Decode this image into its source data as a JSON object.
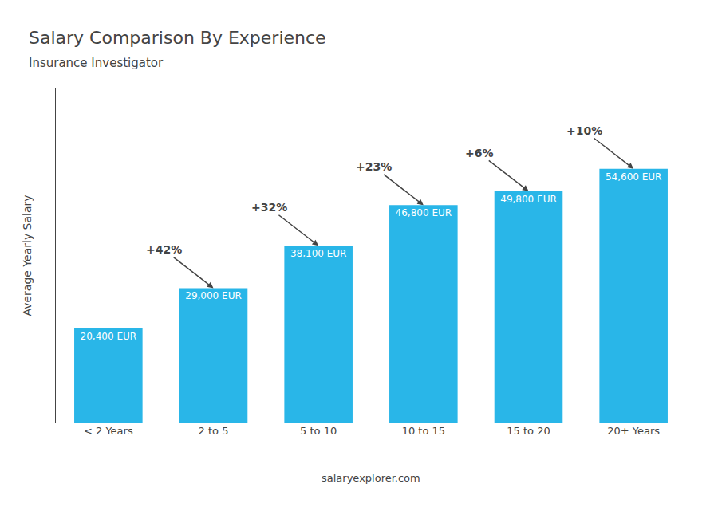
{
  "chart_data": {
    "type": "bar",
    "title": "Salary Comparison By Experience",
    "subtitle": "Insurance Investigator",
    "ylabel": "Average Yearly Salary",
    "categories": [
      "< 2 Years",
      "2 to 5",
      "5 to 10",
      "10 to 15",
      "15 to 20",
      "20+ Years"
    ],
    "values": [
      20400,
      29000,
      38100,
      46800,
      49800,
      54600
    ],
    "value_labels": [
      "20,400 EUR",
      "29,000 EUR",
      "38,100 EUR",
      "46,800 EUR",
      "49,800 EUR",
      "54,600 EUR"
    ],
    "data_labels": true,
    "annotations": [
      "+42%",
      "+32%",
      "+23%",
      "+6%",
      "+10%"
    ],
    "watermark": "salaryexplorer.com",
    "color": "#29b6e8",
    "ylim": [
      0,
      72000
    ],
    "tick_labels": "x",
    "grid": false
  }
}
